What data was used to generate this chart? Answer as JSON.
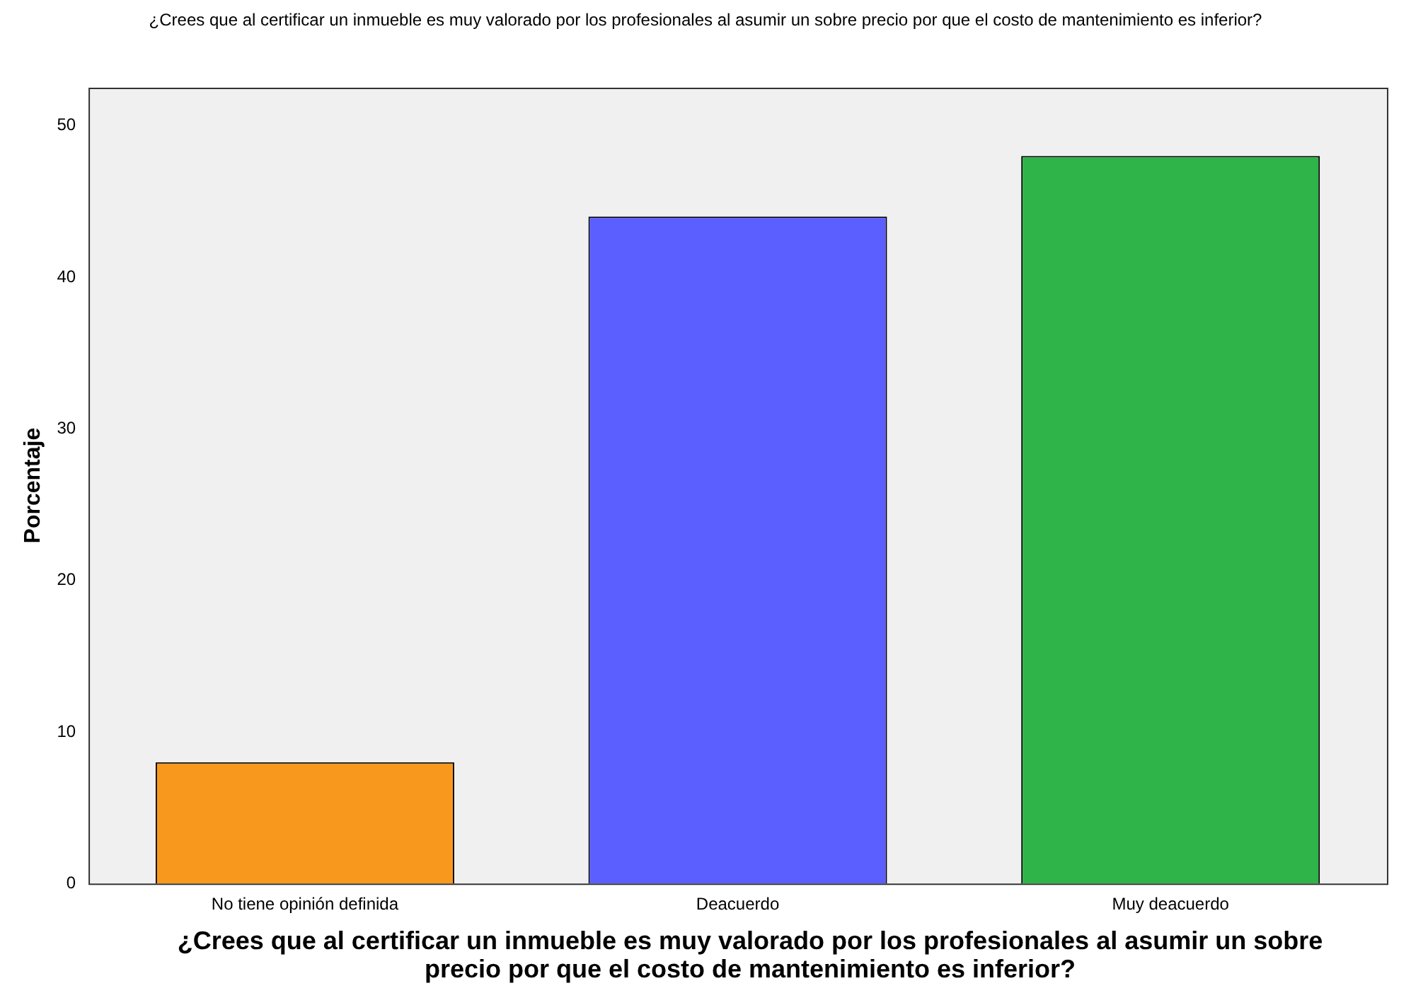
{
  "chart_data": {
    "type": "bar",
    "title": "¿Crees que al certificar un inmueble es muy valorado por los profesionales al asumir un sobre precio por que el costo de mantenimiento es inferior?",
    "xlabel": "¿Crees que al certificar un inmueble es muy valorado por los profesionales al asumir un sobre precio por que el costo de mantenimiento es inferior?",
    "ylabel": "Porcentaje",
    "categories": [
      "No tiene opinión definida",
      "Deacuerdo",
      "Muy deacuerdo"
    ],
    "values": [
      8,
      44,
      48
    ],
    "colors": [
      "#f8991d",
      "#5b5fff",
      "#2fb44a"
    ],
    "ylim": [
      0,
      52.5
    ],
    "yticks": [
      0,
      10,
      20,
      30,
      40,
      50
    ],
    "grid": false,
    "legend": false
  }
}
